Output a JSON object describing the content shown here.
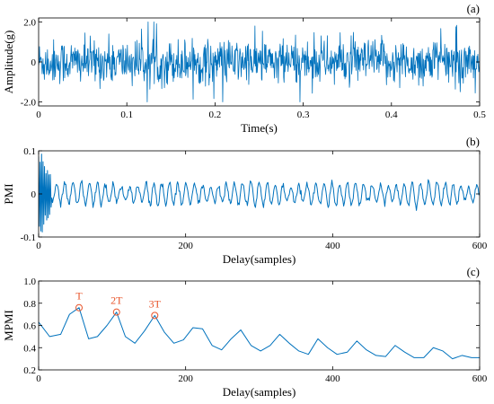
{
  "colors": {
    "line": "#0072BD",
    "annotation": "#E8542A",
    "axis": "#000000"
  },
  "chart_data": [
    {
      "type": "line",
      "panel_label": "(a)",
      "xlabel": "Time(s)",
      "ylabel": "Amplitude(g)",
      "xlim": [
        0,
        0.5
      ],
      "ylim": [
        -2.2,
        2.2
      ],
      "xticks": [
        0,
        0.1,
        0.2,
        0.3,
        0.4,
        0.5
      ],
      "xtick_labels": [
        "0",
        "0.1",
        "0.2",
        "0.3",
        "0.4",
        "0.5"
      ],
      "yticks": [
        -2,
        0,
        2
      ],
      "ytick_labels": [
        "-2.0",
        "0",
        "2.0"
      ],
      "signal": {
        "kind": "random-noise",
        "samples": 1000,
        "std": 0.55,
        "max_abs": 2.0
      }
    },
    {
      "type": "line",
      "panel_label": "(b)",
      "xlabel": "Delay(samples)",
      "ylabel": "PMI",
      "xlim": [
        0,
        600
      ],
      "ylim": [
        -0.1,
        0.1
      ],
      "xticks": [
        0,
        200,
        400,
        600
      ],
      "xtick_labels": [
        "0",
        "200",
        "400",
        "600"
      ],
      "yticks": [
        -0.1,
        0,
        0.1
      ],
      "ytick_labels": [
        "-0.1",
        "0",
        "0.1"
      ],
      "signal": {
        "kind": "oscillation",
        "samples": 600,
        "period": 11,
        "amplitude": 0.022,
        "onset_amplitude": 0.11,
        "onset_length": 18
      }
    },
    {
      "type": "line",
      "panel_label": "(c)",
      "xlabel": "Delay(samples)",
      "ylabel": "MPMI",
      "xlim": [
        0,
        600
      ],
      "ylim": [
        0.2,
        1.0
      ],
      "xticks": [
        0,
        200,
        400,
        600
      ],
      "xtick_labels": [
        "0",
        "200",
        "400",
        "600"
      ],
      "yticks": [
        0.2,
        0.4,
        0.6,
        0.8,
        1.0
      ],
      "ytick_labels": [
        "0.2",
        "0.4",
        "0.6",
        "0.8",
        "1.0"
      ],
      "x": [
        0,
        15,
        30,
        42,
        55,
        68,
        80,
        93,
        106,
        118,
        131,
        144,
        158,
        171,
        184,
        197,
        210,
        223,
        236,
        249,
        262,
        275,
        289,
        302,
        315,
        328,
        341,
        354,
        367,
        380,
        393,
        406,
        420,
        433,
        446,
        459,
        472,
        485,
        498,
        511,
        524,
        537,
        550,
        563,
        576,
        589,
        600
      ],
      "values": [
        0.63,
        0.5,
        0.52,
        0.7,
        0.76,
        0.48,
        0.5,
        0.6,
        0.72,
        0.5,
        0.44,
        0.55,
        0.69,
        0.54,
        0.44,
        0.47,
        0.58,
        0.57,
        0.42,
        0.38,
        0.48,
        0.56,
        0.42,
        0.37,
        0.42,
        0.52,
        0.44,
        0.37,
        0.34,
        0.48,
        0.4,
        0.34,
        0.36,
        0.46,
        0.38,
        0.33,
        0.32,
        0.42,
        0.36,
        0.31,
        0.31,
        0.4,
        0.37,
        0.3,
        0.33,
        0.31,
        0.31
      ],
      "annotations": [
        {
          "text": "T",
          "x": 55,
          "y": 0.76
        },
        {
          "text": "2T",
          "x": 106,
          "y": 0.72
        },
        {
          "text": "3T",
          "x": 158,
          "y": 0.69
        }
      ]
    }
  ]
}
